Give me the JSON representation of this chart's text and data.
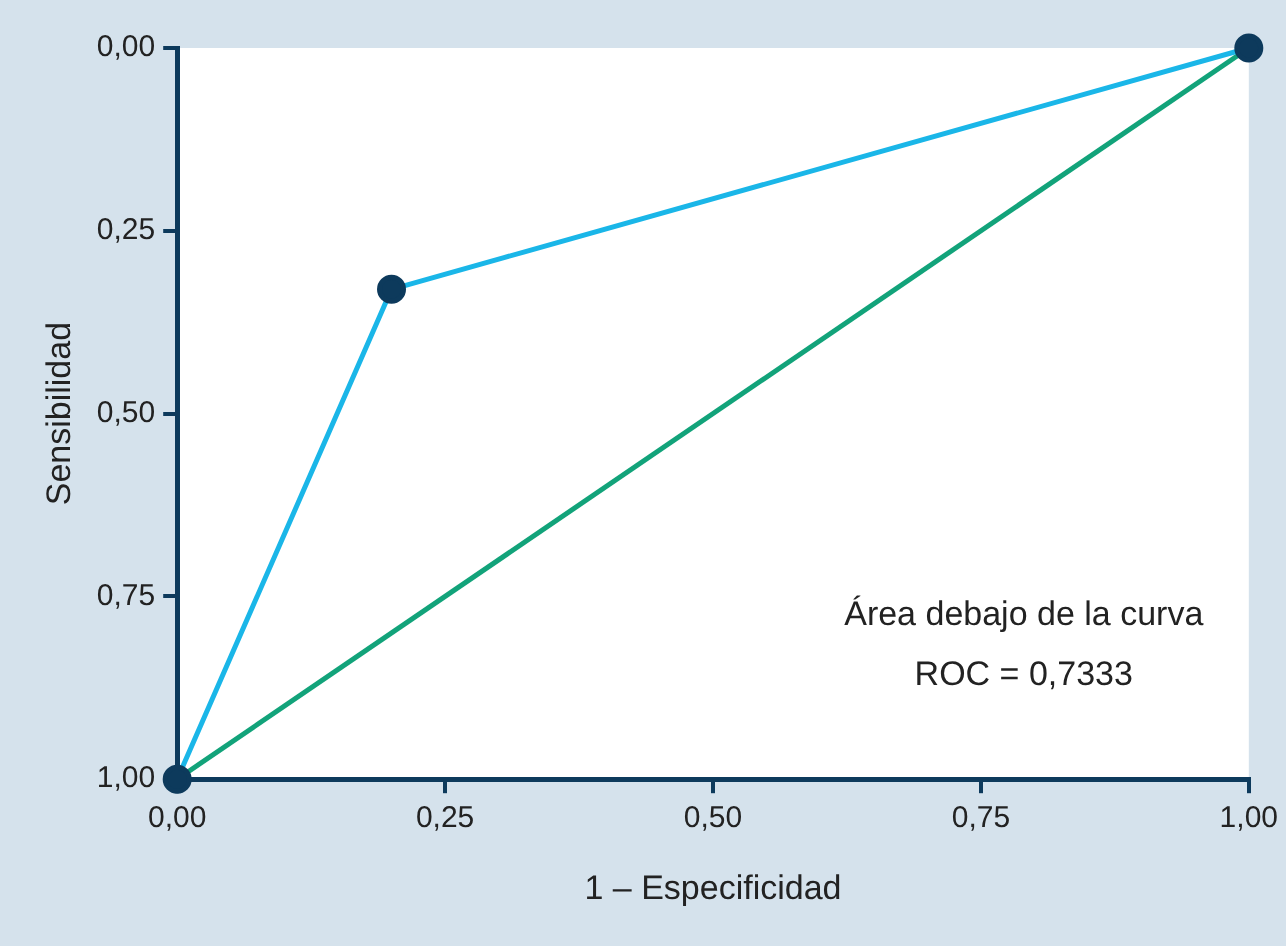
{
  "chart_data": {
    "type": "line",
    "xlabel": "1 – Especificidad",
    "ylabel": "Sensibilidad",
    "xlim": [
      0,
      1
    ],
    "ylim": [
      1,
      0
    ],
    "xticks": [
      {
        "value": 0,
        "label": "0,00"
      },
      {
        "value": 0.25,
        "label": "0,25"
      },
      {
        "value": 0.5,
        "label": "0,50"
      },
      {
        "value": 0.75,
        "label": "0,75"
      },
      {
        "value": 1,
        "label": "1,00"
      }
    ],
    "yticks": [
      {
        "value": 0,
        "label": "0,00"
      },
      {
        "value": 0.25,
        "label": "0,25"
      },
      {
        "value": 0.5,
        "label": "0,50"
      },
      {
        "value": 0.75,
        "label": "0,75"
      },
      {
        "value": 1,
        "label": "1,00"
      }
    ],
    "series": [
      {
        "color": "#12a37a",
        "x": [
          0,
          1
        ],
        "values": [
          1,
          0
        ],
        "marker": "none"
      },
      {
        "color": "#1ab6e8",
        "colors": [
          "#0d3a5c",
          "#0d3a5c",
          "#0d3a5c"
        ],
        "x": [
          0,
          0.2,
          1
        ],
        "values": [
          1,
          0.33,
          0
        ],
        "marker": "circle"
      }
    ],
    "annotations": [
      "Área debajo de la curva",
      "ROC = 0,7333"
    ],
    "grid": false,
    "legend": false
  }
}
